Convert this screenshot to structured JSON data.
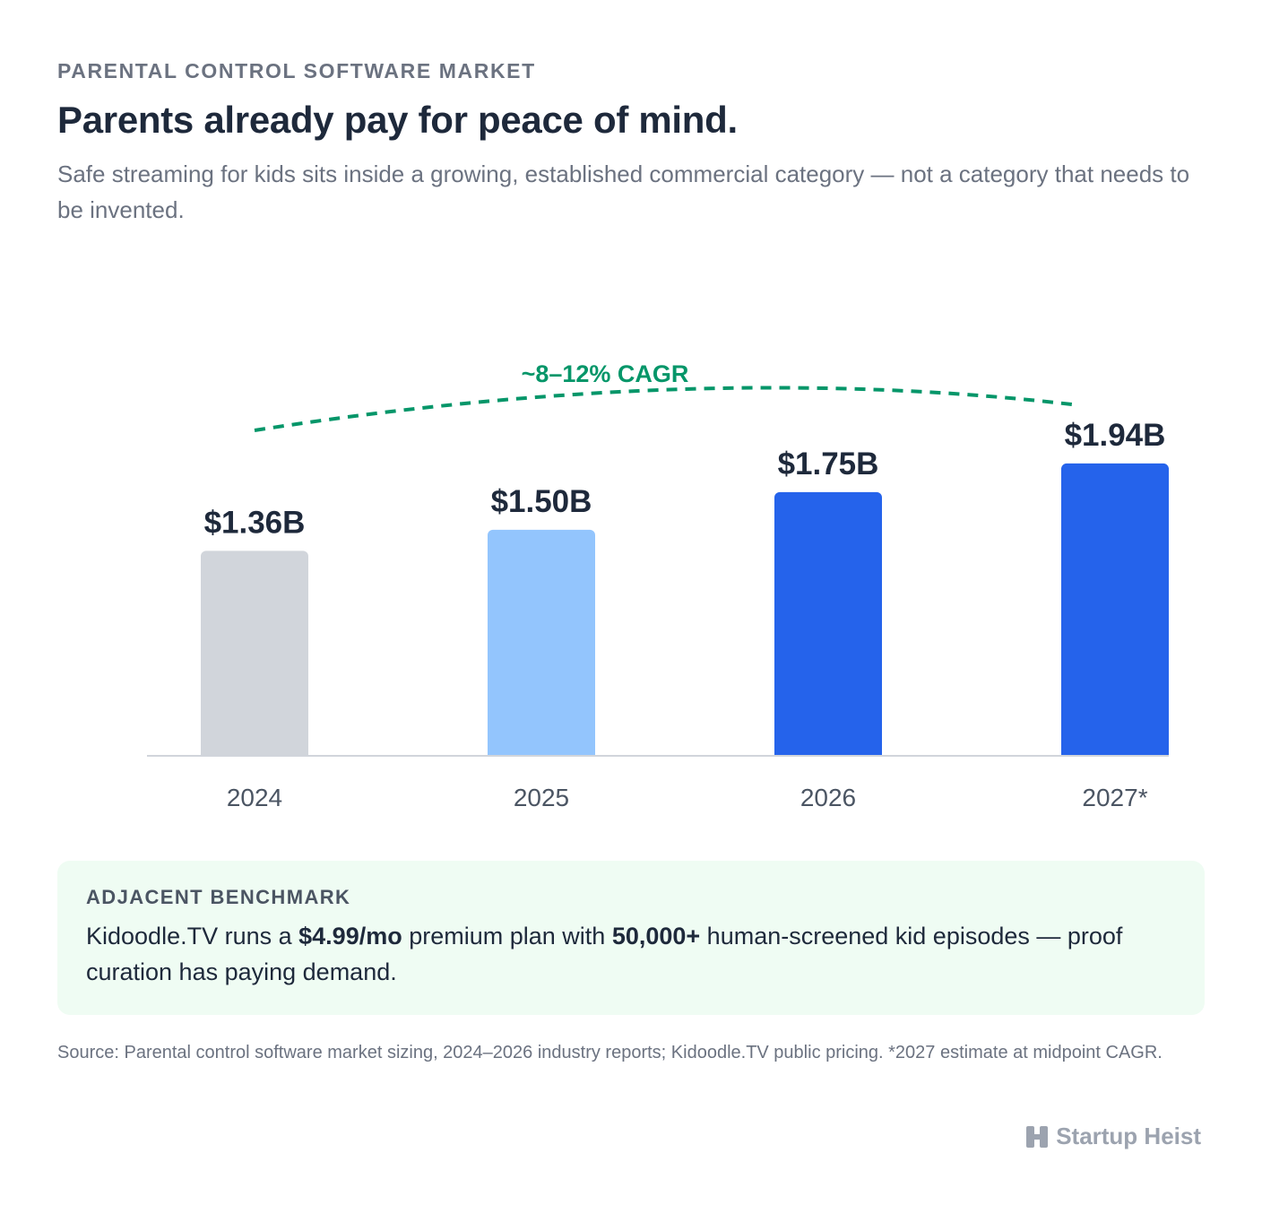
{
  "header": {
    "eyebrow": "PARENTAL CONTROL SOFTWARE MARKET",
    "title": "Parents already pay for peace of mind.",
    "subtitle": "Safe streaming for kids sits inside a growing, established commercial category — not a category that needs to be invented."
  },
  "chart_data": {
    "type": "bar",
    "categories": [
      "2024",
      "2025",
      "2026",
      "2027*"
    ],
    "values": [
      1.36,
      1.5,
      1.75,
      1.94
    ],
    "value_labels": [
      "$1.36B",
      "$1.50B",
      "$1.75B",
      "$1.94B"
    ],
    "bar_colors": [
      "#d1d5db",
      "#93c5fd",
      "#2563eb",
      "#2563eb"
    ],
    "unit": "USD billions",
    "ylim": [
      0,
      2.6
    ],
    "grid": false,
    "trend_annotation": {
      "label": "~8–12% CAGR",
      "color": "#059669",
      "style": "dashed"
    }
  },
  "benchmark": {
    "heading": "ADJACENT BENCHMARK",
    "text_1": "Kidoodle.TV runs a ",
    "bold_1": "$4.99/mo",
    "text_2": " premium plan with ",
    "bold_2": "50,000+",
    "text_3": " human-screened kid episodes — proof curation has paying demand."
  },
  "source": "Source: Parental control software market sizing, 2024–2026 industry reports; Kidoodle.TV public pricing. *2027 estimate at midpoint CAGR.",
  "brand": {
    "name": "Startup Heist",
    "icon": "heist-logo-icon",
    "color": "#9ca3af"
  }
}
